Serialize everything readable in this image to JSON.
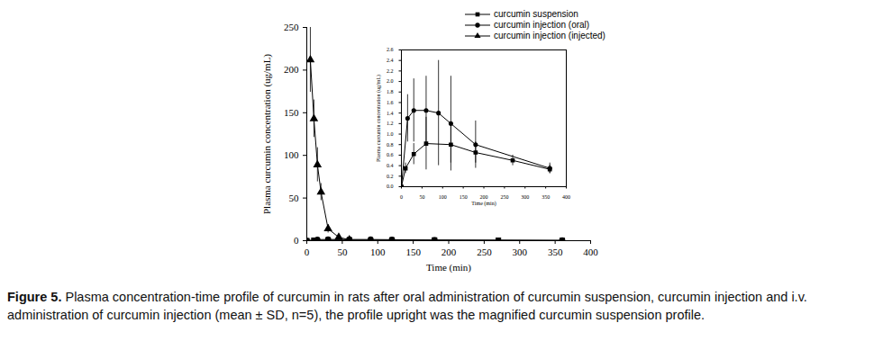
{
  "chart_data": [
    {
      "type": "line",
      "x_label": "Time (min)",
      "y_label": "Plasma curcumin concentration (ug/mL)",
      "xlim": [
        0,
        400
      ],
      "xticks": [
        0,
        50,
        100,
        150,
        200,
        250,
        300,
        350,
        400
      ],
      "ylim": [
        0,
        250
      ],
      "yticks": [
        0,
        50,
        100,
        150,
        200,
        250
      ],
      "legend": "top-right",
      "series": [
        {
          "name": "curcumin suspension",
          "color": "#000000",
          "marker": "square",
          "x": [
            0,
            10,
            30,
            60,
            120,
            180,
            270,
            360
          ],
          "values": [
            0,
            0.35,
            0.62,
            0.82,
            0.8,
            0.65,
            0.5,
            0.33
          ],
          "sd": [
            0,
            0.1,
            0.2,
            0.5,
            0.35,
            0.2,
            0.1,
            0.08
          ]
        },
        {
          "name": "curcumin injection (oral)",
          "color": "#000000",
          "marker": "circle",
          "x": [
            0,
            15,
            30,
            60,
            90,
            120,
            180,
            360
          ],
          "values": [
            0,
            1.3,
            1.45,
            1.45,
            1.4,
            1.2,
            0.8,
            0.35
          ],
          "sd": [
            0,
            0.45,
            0.6,
            0.65,
            1.0,
            0.9,
            0.45,
            0.1
          ]
        },
        {
          "name": "curcumin injection (injected)",
          "color": "#000000",
          "marker": "triangle",
          "x": [
            5,
            10,
            15,
            20,
            30,
            45,
            60
          ],
          "values": [
            212,
            143,
            89,
            57,
            14,
            4,
            1
          ],
          "sd": [
            38,
            22,
            20,
            10,
            5,
            2,
            0.5
          ]
        }
      ]
    },
    {
      "type": "line",
      "x_label": "Time (min)",
      "y_label": "Plasma curcumin concentration (ug/mL)",
      "xlim": [
        0,
        400
      ],
      "xticks": [
        0,
        50,
        100,
        150,
        200,
        250,
        300,
        350,
        400
      ],
      "ylim": [
        0,
        2.6
      ],
      "yticks": [
        {
          "value": 0,
          "label": "0.0"
        },
        {
          "value": 0.2,
          "label": "0.2"
        },
        {
          "value": 0.4,
          "label": "0.4"
        },
        {
          "value": 0.6,
          "label": "0.6"
        },
        {
          "value": 0.8,
          "label": "0.8"
        },
        {
          "value": 1,
          "label": "1.0"
        },
        {
          "value": 1.2,
          "label": "1.2"
        },
        {
          "value": 1.4,
          "label": "1.4"
        },
        {
          "value": 1.6,
          "label": "1.6"
        },
        {
          "value": 1.8,
          "label": "1.8"
        },
        {
          "value": 2,
          "label": "2.0"
        },
        {
          "value": 2.2,
          "label": "2.2"
        },
        {
          "value": 2.4,
          "label": "2.4"
        },
        {
          "value": 2.6,
          "label": "2.6"
        }
      ],
      "series": [
        {
          "color": "#000000",
          "marker": "square",
          "x": [
            0,
            10,
            30,
            60,
            120,
            180,
            270,
            360
          ],
          "values": [
            0,
            0.35,
            0.62,
            0.82,
            0.8,
            0.65,
            0.5,
            0.33
          ],
          "sd": [
            0,
            0.1,
            0.2,
            0.5,
            0.35,
            0.2,
            0.1,
            0.08
          ]
        },
        {
          "color": "#000000",
          "marker": "circle",
          "x": [
            0,
            15,
            30,
            60,
            90,
            120,
            180,
            360
          ],
          "values": [
            0,
            1.3,
            1.45,
            1.45,
            1.4,
            1.2,
            0.8,
            0.35
          ],
          "sd": [
            0,
            0.45,
            0.6,
            0.65,
            1.0,
            0.9,
            0.45,
            0.1
          ]
        }
      ]
    }
  ],
  "caption_label": "Figure 5.",
  "caption": "Plasma concentration-time profile of curcumin in rats after oral administration of curcumin suspension, curcumin injection and i.v. administration of curcumin injection (mean ± SD, n=5), the profile upright was the magnified curcumin suspension profile."
}
